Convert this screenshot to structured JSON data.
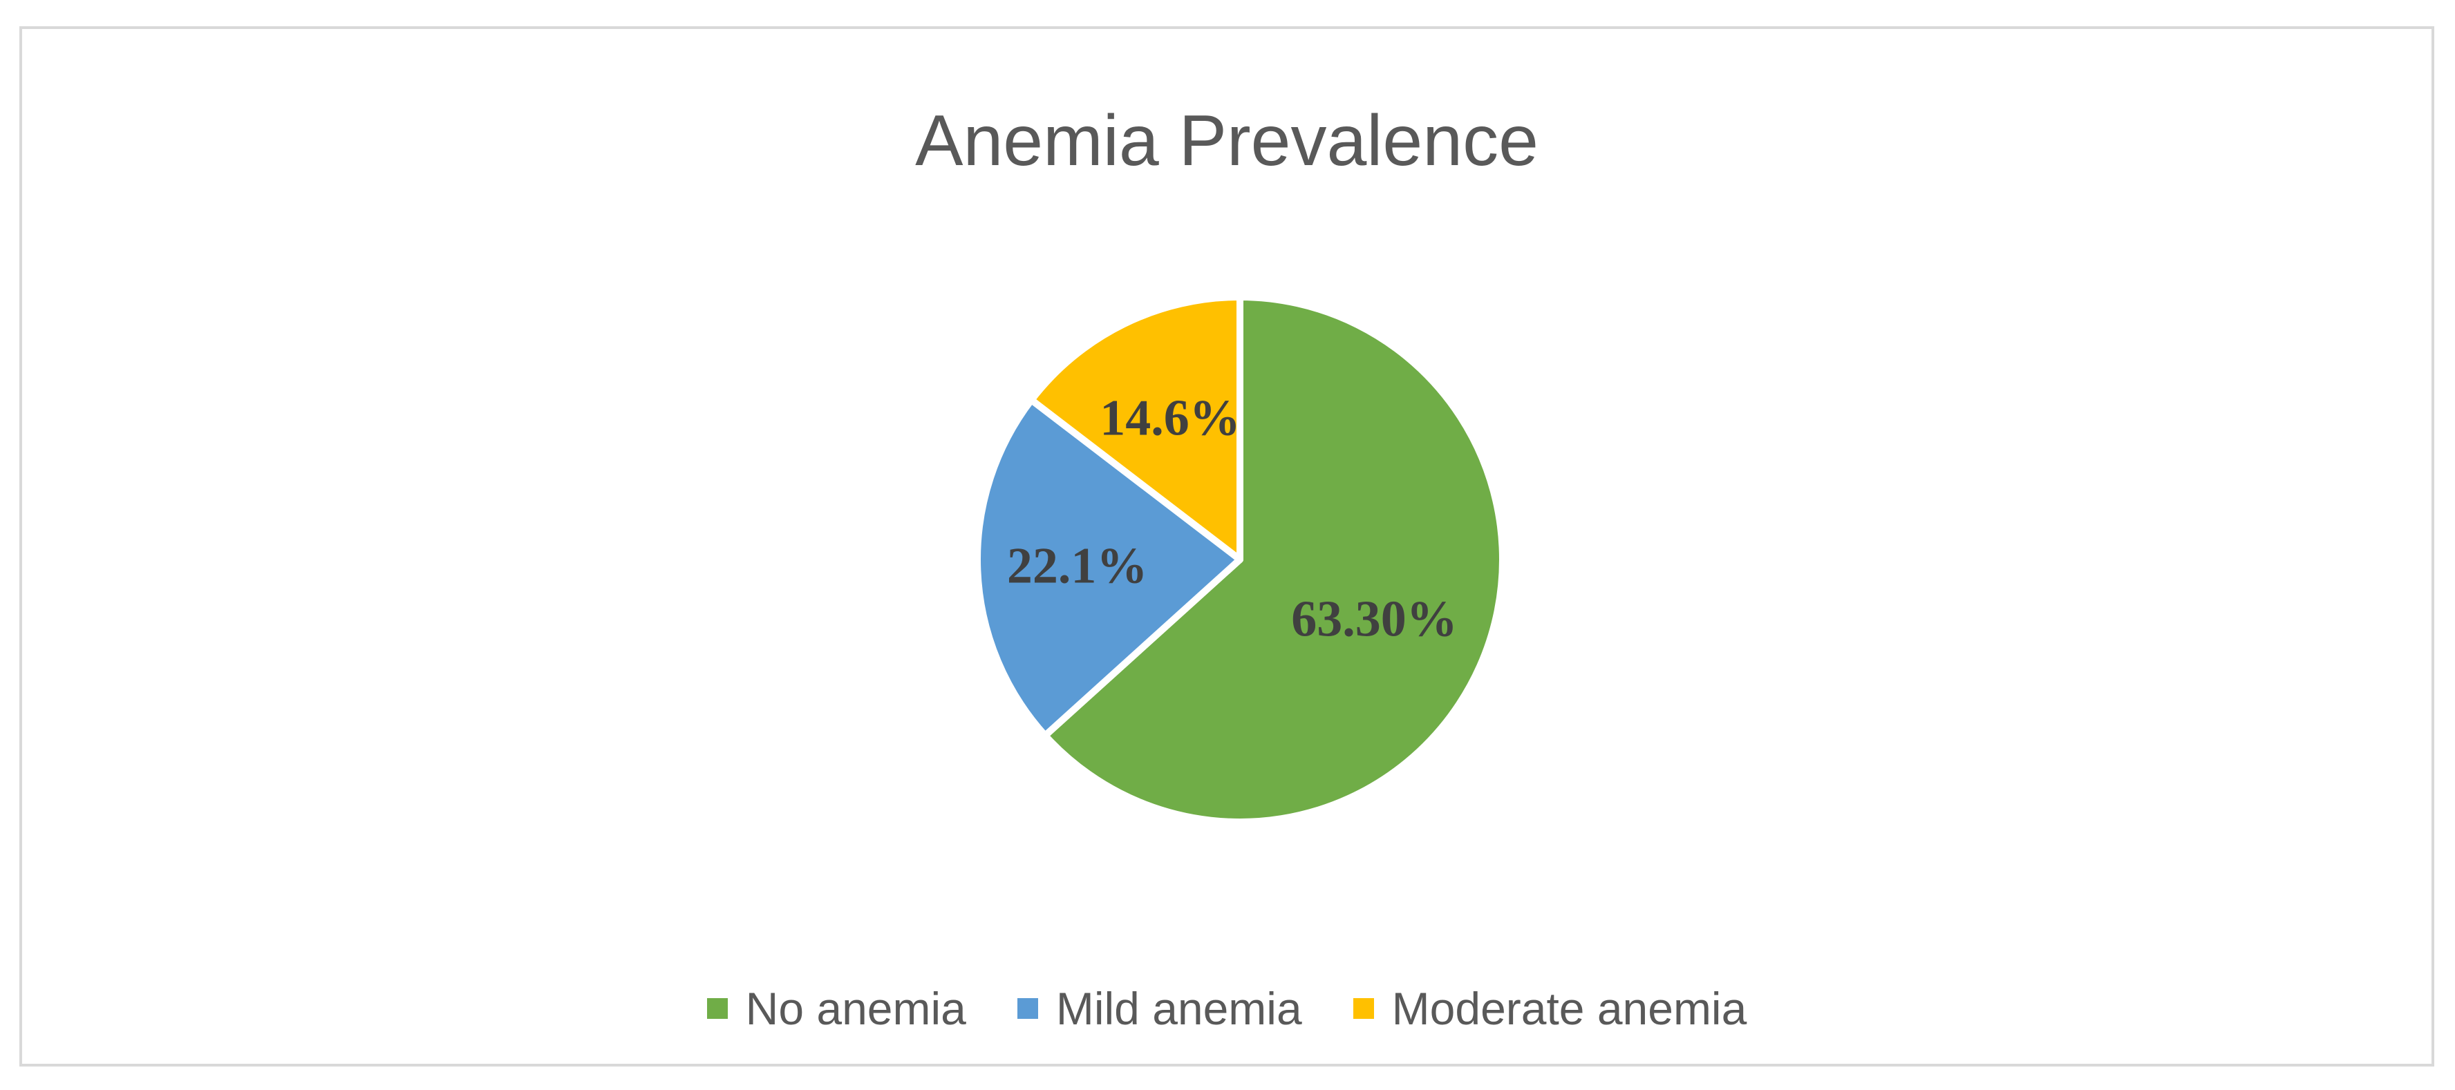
{
  "chart_data": {
    "type": "pie",
    "title": "Anemia Prevalence",
    "categories": [
      "No anemia",
      "Mild anemia",
      "Moderate anemia"
    ],
    "values": [
      63.3,
      22.1,
      14.6
    ],
    "data_labels": [
      "63.30%",
      "22.1%",
      "14.6%"
    ],
    "colors": [
      "#70ad47",
      "#5b9bd5",
      "#ffc000"
    ],
    "legend_position": "bottom"
  }
}
